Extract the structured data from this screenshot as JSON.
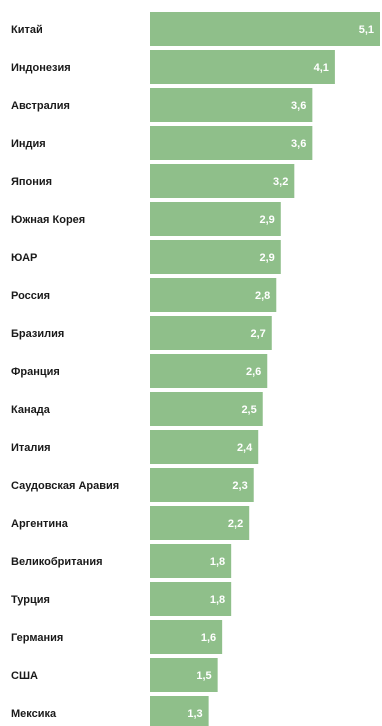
{
  "chart_data": {
    "type": "bar",
    "orientation": "horizontal",
    "categories": [
      "Китай",
      "Индонезия",
      "Австралия",
      "Индия",
      "Япония",
      "Южная Корея",
      "ЮАР",
      "Россия",
      "Бразилия",
      "Франция",
      "Канада",
      "Италия",
      "Саудовская Аравия",
      "Аргентина",
      "Великобритания",
      "Турция",
      "Германия",
      "США",
      "Мексика"
    ],
    "values": [
      5.1,
      4.1,
      3.6,
      3.6,
      3.2,
      2.9,
      2.9,
      2.8,
      2.7,
      2.6,
      2.5,
      2.4,
      2.3,
      2.2,
      1.8,
      1.8,
      1.6,
      1.5,
      1.3
    ],
    "value_labels": [
      "5,1",
      "4,1",
      "3,6",
      "3,6",
      "3,2",
      "2,9",
      "2,9",
      "2,8",
      "2,7",
      "2,6",
      "2,5",
      "2,4",
      "2,3",
      "2,2",
      "1,8",
      "1,8",
      "1,6",
      "1,5",
      "1,3"
    ],
    "title": "",
    "xlabel": "",
    "ylabel": "",
    "xlim": [
      0,
      5.1
    ],
    "grid": false,
    "legend": "none",
    "bar_color": "#8fbf8a"
  }
}
